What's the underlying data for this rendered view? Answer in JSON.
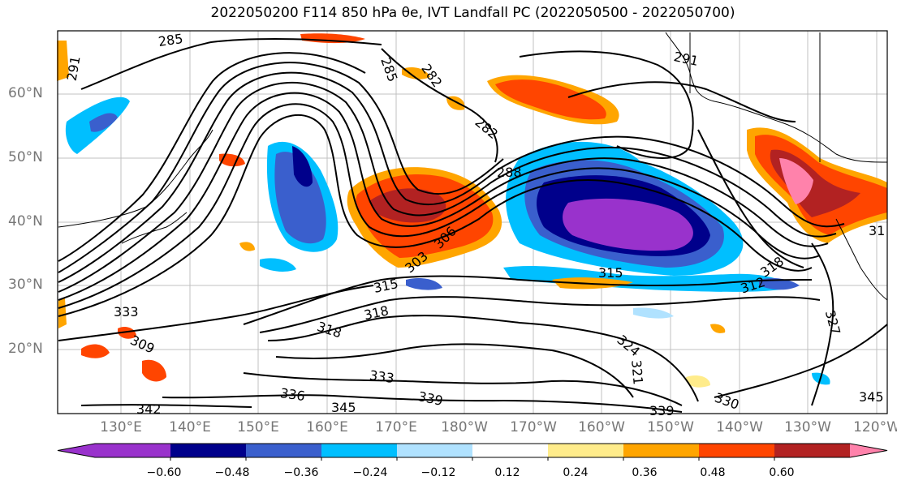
{
  "title": "2022050200 F114 850 hPa θe, IVT Landfall PC (2022050500 - 2022050700)",
  "lat_labels": [
    "60°N",
    "50°N",
    "40°N",
    "30°N",
    "20°N"
  ],
  "lon_labels": [
    "130°E",
    "140°E",
    "150°E",
    "160°E",
    "170°E",
    "180°W",
    "170°W",
    "160°W",
    "150°W",
    "140°W",
    "130°W",
    "120°W"
  ],
  "contour_labels": [
    "285",
    "291",
    "285",
    "282",
    "291",
    "282",
    "288",
    "306",
    "303",
    "315",
    "315",
    "318",
    "318",
    "312",
    "333",
    "318",
    "324",
    "321",
    "327",
    "309",
    "333",
    "336",
    "339",
    "342",
    "345",
    "339",
    "330",
    "345",
    "31"
  ],
  "colorbar": {
    "ticks": [
      "−0.60",
      "−0.48",
      "−0.36",
      "−0.24",
      "−0.12",
      "0.12",
      "0.24",
      "0.36",
      "0.48",
      "0.60"
    ],
    "colors": [
      "#9932cc",
      "#00008b",
      "#3a5fcd",
      "#00bfff",
      "#b0e2ff",
      "#ffffff",
      "#ffec8b",
      "#ffa500",
      "#ff4500",
      "#b22222",
      "#ff82ab",
      "#ff82ab"
    ]
  },
  "map_colors": {
    "background": "#ffffff",
    "gridline": "#c0c0c0",
    "contour": "#000000"
  }
}
